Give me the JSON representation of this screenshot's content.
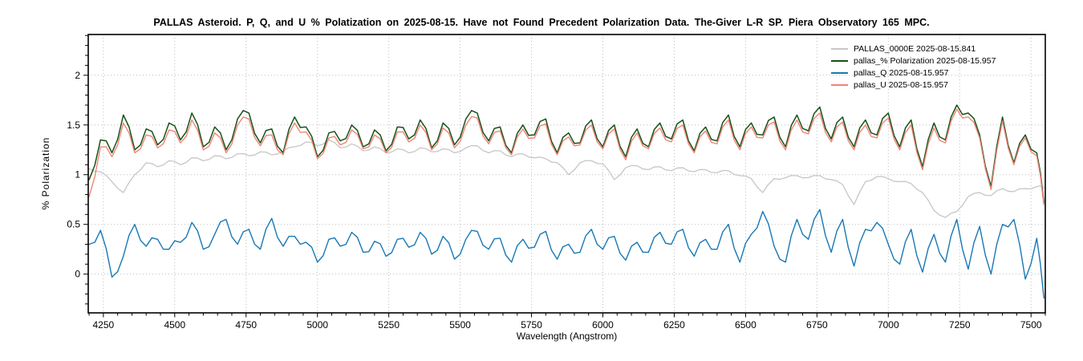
{
  "chart_data": {
    "type": "line",
    "title": "PALLAS Asteroid.  P, Q, and U % Polatization on 2025-08-15. Have not Found Precedent Polarization Data.  The-Giver L-R SP.  Piera Observatory 165 MPC.",
    "xlabel": "Wavelength (Angstrom)",
    "ylabel": "% Polarization",
    "xlim": [
      4197,
      7550
    ],
    "ylim": [
      -0.39,
      2.41
    ],
    "x_ticks": [
      4250,
      4500,
      4750,
      5000,
      5250,
      5500,
      5750,
      6000,
      6250,
      6500,
      6750,
      7000,
      7250,
      7500
    ],
    "x_minor_step": 50,
    "y_ticks": [
      0,
      0.5,
      1,
      1.5,
      2
    ],
    "y_minor_step": 0.1,
    "grid": "dotted-major-both",
    "legend_position": "top-right-inside",
    "frame_color": "#000000",
    "grid_color": "#bdbdbd",
    "x": [
      4200,
      4240,
      4280,
      4320,
      4360,
      4400,
      4440,
      4480,
      4520,
      4560,
      4600,
      4640,
      4680,
      4720,
      4760,
      4800,
      4840,
      4880,
      4920,
      4960,
      5000,
      5040,
      5080,
      5120,
      5160,
      5200,
      5240,
      5280,
      5320,
      5360,
      5400,
      5440,
      5480,
      5520,
      5560,
      5600,
      5640,
      5680,
      5720,
      5760,
      5800,
      5840,
      5880,
      5920,
      5960,
      6000,
      6040,
      6080,
      6120,
      6160,
      6200,
      6240,
      6280,
      6320,
      6360,
      6400,
      6440,
      6480,
      6520,
      6560,
      6600,
      6640,
      6680,
      6720,
      6760,
      6800,
      6840,
      6880,
      6920,
      6960,
      7000,
      7040,
      7080,
      7120,
      7160,
      7200,
      7240,
      7280,
      7320,
      7360,
      7400,
      7440,
      7480,
      7520,
      7545
    ],
    "series": [
      {
        "name": "PALLAS_0000E  2025-08-15.841",
        "color": "#c6c6c6",
        "width": 1.3,
        "jitter": 0.012,
        "values": [
          1.06,
          1.03,
          0.93,
          0.82,
          1.0,
          1.12,
          1.08,
          1.14,
          1.1,
          1.17,
          1.14,
          1.19,
          1.16,
          1.21,
          1.19,
          1.23,
          1.2,
          1.24,
          1.28,
          1.33,
          1.29,
          1.35,
          1.27,
          1.31,
          1.24,
          1.28,
          1.22,
          1.26,
          1.22,
          1.27,
          1.23,
          1.26,
          1.22,
          1.27,
          1.29,
          1.22,
          1.24,
          1.18,
          1.21,
          1.17,
          1.16,
          1.12,
          1.0,
          1.12,
          1.14,
          1.11,
          0.95,
          1.07,
          1.09,
          1.05,
          1.08,
          1.04,
          1.07,
          1.03,
          1.05,
          1.02,
          1.04,
          0.99,
          0.96,
          0.82,
          0.96,
          0.97,
          0.99,
          0.97,
          0.99,
          0.95,
          0.9,
          0.7,
          0.93,
          0.98,
          0.96,
          0.93,
          0.91,
          0.82,
          0.64,
          0.57,
          0.63,
          0.78,
          0.82,
          0.79,
          0.86,
          0.83,
          0.86,
          0.88,
          0.87
        ]
      },
      {
        "name": "pallas_% Polarization  2025-08-15.957",
        "color": "#175217",
        "width": 1.5,
        "jitter": 0.055,
        "values": [
          0.95,
          1.35,
          1.22,
          1.6,
          1.25,
          1.46,
          1.3,
          1.52,
          1.35,
          1.62,
          1.28,
          1.48,
          1.25,
          1.56,
          1.62,
          1.32,
          1.46,
          1.22,
          1.58,
          1.48,
          1.18,
          1.42,
          1.34,
          1.5,
          1.28,
          1.45,
          1.24,
          1.48,
          1.36,
          1.55,
          1.27,
          1.52,
          1.3,
          1.56,
          1.62,
          1.34,
          1.48,
          1.22,
          1.5,
          1.4,
          1.56,
          1.22,
          1.42,
          1.32,
          1.55,
          1.28,
          1.5,
          1.18,
          1.46,
          1.28,
          1.52,
          1.36,
          1.55,
          1.24,
          1.48,
          1.34,
          1.6,
          1.28,
          1.52,
          1.4,
          1.58,
          1.28,
          1.6,
          1.44,
          1.68,
          1.36,
          1.58,
          1.28,
          1.55,
          1.4,
          1.62,
          1.28,
          1.55,
          1.08,
          1.52,
          1.35,
          1.7,
          1.62,
          1.4,
          0.88,
          1.58,
          1.12,
          1.4,
          1.22,
          0.72
        ]
      },
      {
        "name": "pallas_Q  2025-08-15.957",
        "color": "#1878b4",
        "width": 1.4,
        "jitter": 0.05,
        "values": [
          0.3,
          0.44,
          -0.03,
          0.18,
          0.5,
          0.28,
          0.35,
          0.25,
          0.32,
          0.52,
          0.25,
          0.4,
          0.55,
          0.3,
          0.45,
          0.25,
          0.56,
          0.28,
          0.38,
          0.32,
          0.12,
          0.35,
          0.28,
          0.42,
          0.22,
          0.33,
          0.18,
          0.35,
          0.27,
          0.42,
          0.2,
          0.38,
          0.15,
          0.35,
          0.43,
          0.25,
          0.36,
          0.12,
          0.35,
          0.27,
          0.43,
          0.15,
          0.3,
          0.22,
          0.45,
          0.25,
          0.38,
          0.14,
          0.32,
          0.22,
          0.42,
          0.3,
          0.45,
          0.18,
          0.35,
          0.25,
          0.5,
          0.12,
          0.4,
          0.63,
          0.28,
          0.12,
          0.55,
          0.35,
          0.65,
          0.22,
          0.55,
          0.08,
          0.45,
          0.52,
          0.3,
          0.1,
          0.45,
          0.02,
          0.4,
          0.12,
          0.55,
          0.05,
          0.48,
          0.0,
          0.5,
          0.55,
          -0.05,
          0.36,
          -0.24
        ]
      },
      {
        "name": "pallas_U  2025-08-15.957",
        "color": "#f08478",
        "width": 1.4,
        "jitter": 0.05,
        "values": [
          0.78,
          1.28,
          1.18,
          1.52,
          1.22,
          1.4,
          1.27,
          1.45,
          1.32,
          1.55,
          1.25,
          1.42,
          1.22,
          1.5,
          1.56,
          1.29,
          1.4,
          1.2,
          1.52,
          1.43,
          1.16,
          1.37,
          1.3,
          1.45,
          1.26,
          1.4,
          1.22,
          1.43,
          1.33,
          1.5,
          1.25,
          1.47,
          1.27,
          1.5,
          1.57,
          1.31,
          1.44,
          1.2,
          1.46,
          1.37,
          1.51,
          1.2,
          1.38,
          1.3,
          1.5,
          1.26,
          1.46,
          1.15,
          1.42,
          1.26,
          1.47,
          1.33,
          1.5,
          1.22,
          1.44,
          1.31,
          1.55,
          1.25,
          1.48,
          1.37,
          1.53,
          1.25,
          1.55,
          1.41,
          1.62,
          1.33,
          1.53,
          1.25,
          1.5,
          1.37,
          1.57,
          1.25,
          1.5,
          1.05,
          1.47,
          1.32,
          1.66,
          1.58,
          1.37,
          0.85,
          1.54,
          1.1,
          1.37,
          1.19,
          0.7
        ]
      }
    ]
  }
}
